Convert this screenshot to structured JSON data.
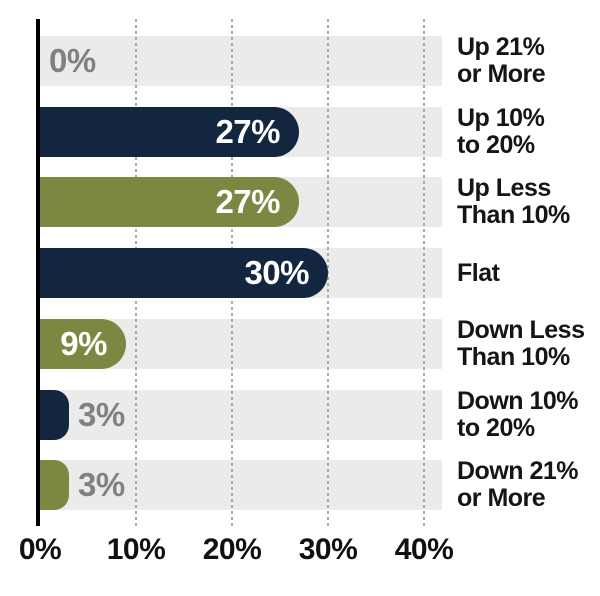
{
  "chart_data": {
    "type": "bar",
    "orientation": "horizontal",
    "title": "",
    "xlabel": "",
    "ylabel": "",
    "categories": [
      "Up 21% or More",
      "Up 10% to 20%",
      "Up Less Than 10%",
      "Flat",
      "Down Less Than 10%",
      "Down 10% to 20%",
      "Down 21% or More"
    ],
    "label_lines": [
      [
        "Up 21%",
        "or More"
      ],
      [
        "Up 10%",
        "to 20%"
      ],
      [
        "Up Less",
        "Than 10%"
      ],
      [
        "Flat"
      ],
      [
        "Down Less",
        "Than 10%"
      ],
      [
        "Down 10%",
        "to 20%"
      ],
      [
        "Down 21%",
        "or More"
      ]
    ],
    "values": [
      0,
      27,
      27,
      30,
      9,
      3,
      3
    ],
    "value_labels": [
      "0%",
      "27%",
      "27%",
      "30%",
      "9%",
      "3%",
      "3%"
    ],
    "bar_colors": [
      "none",
      "#13263f",
      "#7d8742",
      "#13263f",
      "#7d8742",
      "#13263f",
      "#7d8742"
    ],
    "label_placement": [
      "outside",
      "inside",
      "inside",
      "inside",
      "inside",
      "outside",
      "outside"
    ],
    "x_ticks": [
      "0%",
      "10%",
      "20%",
      "30%",
      "40%"
    ],
    "x_tick_values": [
      0,
      10,
      20,
      30,
      40
    ],
    "xlim": [
      0,
      42
    ],
    "grid": "vertical-dotted",
    "legend": "none",
    "colors": {
      "navy": "#13263f",
      "olive": "#7d8742",
      "track": "#ebebeb",
      "gridline": "#a9a9a9",
      "outside_label_gray": "#818181",
      "category_text": "#151515",
      "axis_line": "#000000",
      "background": "#ffffff"
    }
  }
}
